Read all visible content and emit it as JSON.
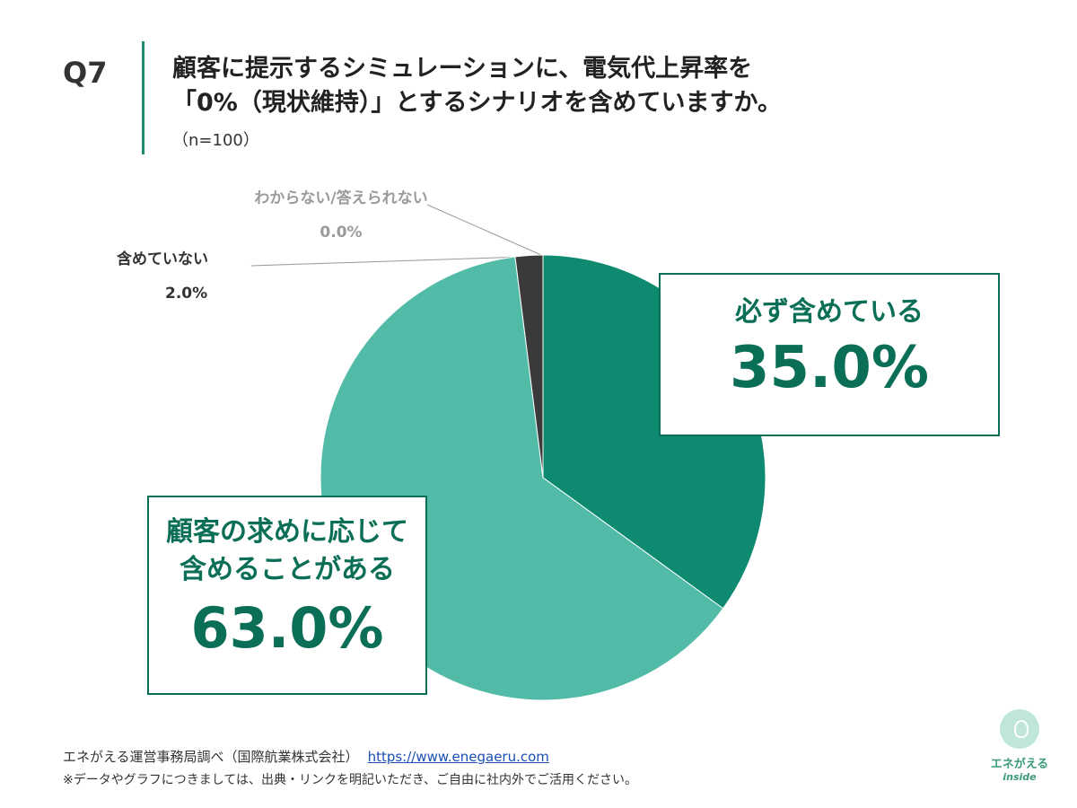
{
  "question": {
    "label": "Q7",
    "title_line1": "顧客に提示するシミュレーションに、電気代上昇率を",
    "title_line2": "「0%（現状維持）」とするシナリオを含めていますか。",
    "sample": "（n=100）"
  },
  "chart_data": {
    "type": "pie",
    "categories": [
      "必ず含めている",
      "顧客の求めに応じて含めることがある",
      "含めていない",
      "わからない/答えられない"
    ],
    "values": [
      35.0,
      63.0,
      2.0,
      0.0
    ],
    "value_labels": [
      "35.0%",
      "63.0%",
      "2.0%",
      "0.0%"
    ],
    "colors": [
      "#0d8a6f",
      "#52bba8",
      "#3a3a3a",
      "#bbbbbb"
    ],
    "start_angle": "12 o'clock",
    "direction": "clockwise"
  },
  "labels": {
    "box1_category": "必ず含めている",
    "box1_value": "35.0%",
    "box2_line1": "顧客の求めに応じて",
    "box2_line2": "含めることがある",
    "box2_value": "63.0%",
    "small1_category": "わからない/答えられない",
    "small1_value": "0.0%",
    "small2_category": "含めていない",
    "small2_value": "2.0%"
  },
  "footer": {
    "source": "エネがえる運営事務局調べ（国際航業株式会社）",
    "url": "https://www.enegaeru.com",
    "note": "※データやグラフにつきましては、出典・リンクを明記いただき、ご自由に社内外でご活用ください。"
  },
  "logo": {
    "line1": "エネがえる",
    "line2": "inside"
  }
}
